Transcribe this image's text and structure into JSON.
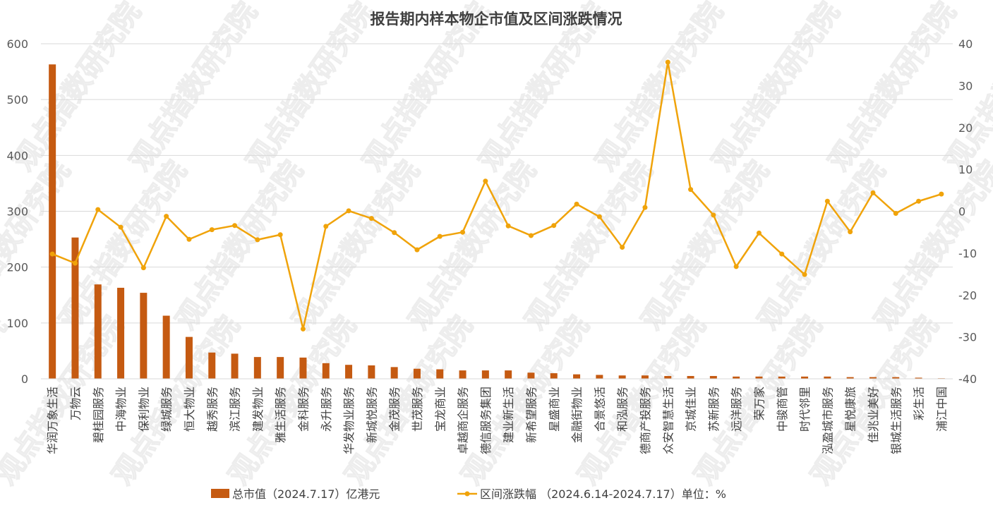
{
  "watermark": "观点指数研究院",
  "chart_data": {
    "type": "bar+line",
    "title": "报告期内样本物企市值及区间涨跌情况",
    "categories": [
      "华润万象生活",
      "万物云",
      "碧桂园服务",
      "中海物业",
      "保利物业",
      "绿城服务",
      "恒大物业",
      "越秀服务",
      "滨江服务",
      "建发物业",
      "雅生活服务",
      "金科服务",
      "永升服务",
      "华发物业服务",
      "新城悦服务",
      "金茂服务",
      "世茂服务",
      "宝龙商业",
      "卓越商企服务",
      "德信服务集团",
      "建业新生活",
      "新希望服务",
      "星盛商业",
      "金融街物业",
      "合景悠活",
      "和泓服务",
      "德商产投服务",
      "众安智慧生活",
      "京城佳业",
      "苏新服务",
      "远洋服务",
      "荣万家",
      "中骏商管",
      "时代邻里",
      "泓盈城市服务",
      "星悦康旅",
      "佳兆业美好",
      "银城生活服务",
      "彩生活",
      "浦江中国"
    ],
    "series": [
      {
        "name": "总市值（2024.7.17）亿港元",
        "type": "bar",
        "axis": "left",
        "color": "#c55a11",
        "values": [
          563,
          253,
          169,
          163,
          154,
          113,
          75,
          47,
          45,
          39,
          39,
          38,
          28,
          25,
          24,
          21,
          18,
          17,
          15,
          15,
          15,
          11,
          10,
          8,
          7,
          6,
          6,
          5,
          5,
          5,
          4,
          4,
          4,
          4,
          4,
          3,
          3,
          3,
          2,
          1
        ]
      },
      {
        "name": "区间涨跌幅 （2024.6.14-2024.7.17）单位：%",
        "type": "line",
        "axis": "right",
        "color": "#f0a30a",
        "values": [
          -10.2,
          -12.4,
          0.4,
          -3.8,
          -13.5,
          -1.2,
          -6.7,
          -4.4,
          -3.4,
          -6.8,
          -5.6,
          -28.1,
          -3.6,
          0.1,
          -1.7,
          -5.1,
          -9.2,
          -6.0,
          -5.0,
          7.2,
          -3.5,
          -5.8,
          -3.4,
          1.7,
          -1.3,
          -8.6,
          0.9,
          35.6,
          5.2,
          -0.9,
          -13.2,
          -5.2,
          -10.2,
          -15.1,
          2.4,
          -4.9,
          4.4,
          -0.5,
          2.4,
          4.1
        ]
      }
    ],
    "ylim_left": [
      0,
      600
    ],
    "yticks_left": [
      0,
      100,
      200,
      300,
      400,
      500,
      600
    ],
    "ylim_right": [
      -40,
      40
    ],
    "yticks_right": [
      -40,
      -30,
      -20,
      -10,
      0,
      10,
      20,
      30,
      40
    ],
    "grid": true,
    "legend_position": "bottom"
  }
}
